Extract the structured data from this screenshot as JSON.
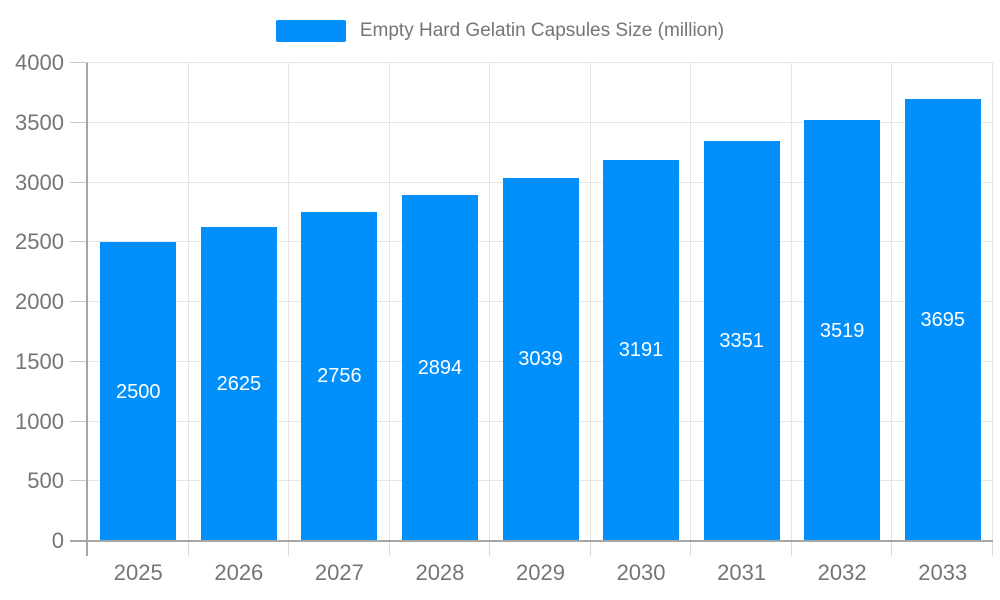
{
  "legend": {
    "label": "Empty Hard Gelatin Capsules Size (million)"
  },
  "chart_data": {
    "type": "bar",
    "title": "Empty Hard Gelatin Capsules Size (million)",
    "categories": [
      "2025",
      "2026",
      "2027",
      "2028",
      "2029",
      "2030",
      "2031",
      "2032",
      "2033"
    ],
    "series": [
      {
        "name": "Empty Hard Gelatin Capsules Size (million)",
        "values": [
          2500,
          2625,
          2756,
          2894,
          3039,
          3191,
          3351,
          3519,
          3695
        ]
      }
    ],
    "xlabel": "",
    "ylabel": "",
    "ylim": [
      0,
      4000
    ],
    "yticks": [
      0,
      500,
      1000,
      1500,
      2000,
      2500,
      3000,
      3500,
      4000
    ],
    "grid": true,
    "legend_position": "top",
    "value_labels": "inside-center"
  },
  "colors": {
    "bar": "#008FFB",
    "grid": "#e6e6e6",
    "axis": "#a6a6a6",
    "y_tick": "#c8c8c8",
    "x_tick": "#d9d9d9",
    "label_text": "#757575",
    "value_label_text": "#ffffff",
    "background": "#ffffff"
  }
}
